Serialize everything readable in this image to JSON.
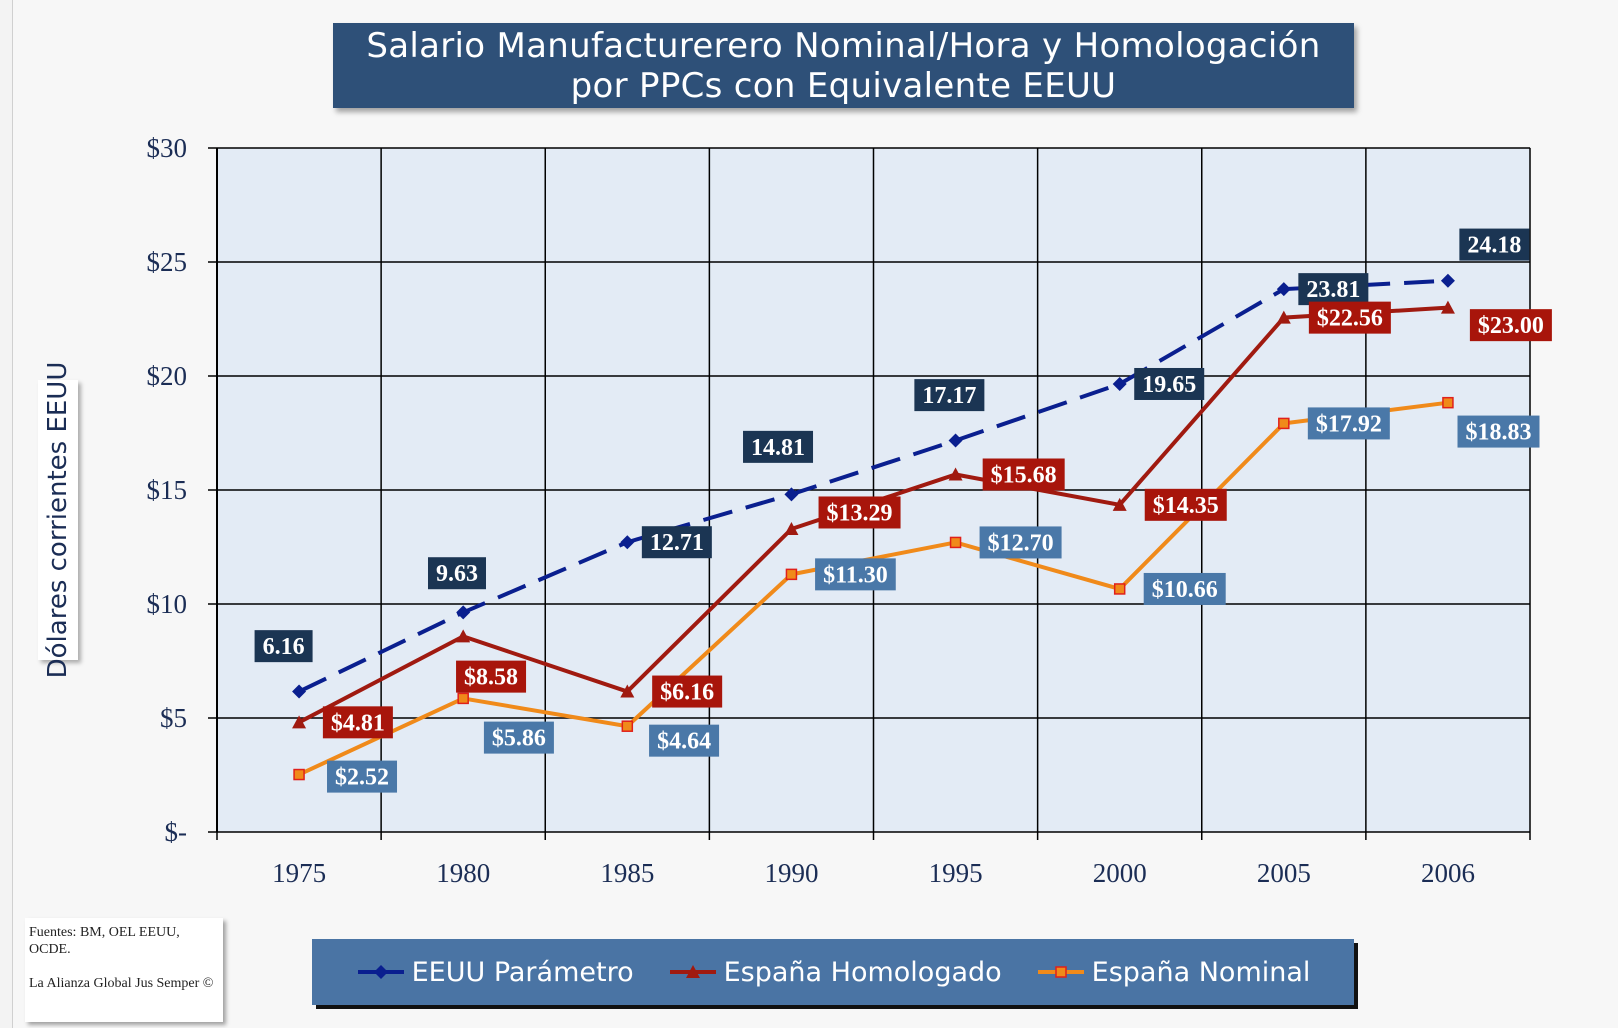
{
  "chart_data": {
    "type": "line",
    "title": [
      "Salario Manufacturerero Nominal/Hora y Homologación",
      "por PPCs con Equivalente EEUU"
    ],
    "y_label": "Dólares corrientes EEUU",
    "categories": [
      "1975",
      "1980",
      "1985",
      "1990",
      "1995",
      "2000",
      "2005",
      "2006"
    ],
    "ylim": [
      0,
      30
    ],
    "yticks": [
      {
        "value": 0,
        "label": "$-"
      },
      {
        "value": 5,
        "label": "$5"
      },
      {
        "value": 10,
        "label": "$10"
      },
      {
        "value": 15,
        "label": "$15"
      },
      {
        "value": 20,
        "label": "$20"
      },
      {
        "value": 25,
        "label": "$25"
      },
      {
        "value": 30,
        "label": "$30"
      }
    ],
    "grid": true,
    "legend": "bottom",
    "series": [
      {
        "name": "EEUU Parámetro",
        "color": "#0a1f8f",
        "label_color": "#1b3553",
        "marker": "diamond",
        "linestyle": "dashed",
        "values": [
          6.16,
          9.63,
          12.71,
          14.81,
          17.17,
          19.65,
          23.81,
          24.18
        ]
      },
      {
        "name": "España Homologado",
        "color": "#a01a10",
        "label_color": "#a8150b",
        "marker": "triangle",
        "linestyle": "solid",
        "values": [
          4.81,
          8.58,
          6.16,
          13.29,
          15.68,
          14.35,
          22.56,
          23.0
        ],
        "value_labels": [
          "$4.81",
          "$8.58",
          "$6.16",
          "$13.29",
          "$15.68",
          "$14.35",
          "$22.56",
          "$23.00"
        ]
      },
      {
        "name": "España Nominal",
        "color": "#f08a1a",
        "label_color": "#4a78a8",
        "marker": "square",
        "linestyle": "solid",
        "values": [
          2.52,
          5.86,
          4.64,
          11.3,
          12.7,
          10.66,
          17.92,
          18.83
        ],
        "value_labels": [
          "$2.52",
          "$5.86",
          "$4.64",
          "$11.30",
          "$12.70",
          "$10.66",
          "$17.92",
          "$18.83"
        ]
      }
    ],
    "source": [
      "Fuentes: BM, OEL EEUU, OCDE.",
      "La Alianza Global Jus Semper ©"
    ]
  }
}
